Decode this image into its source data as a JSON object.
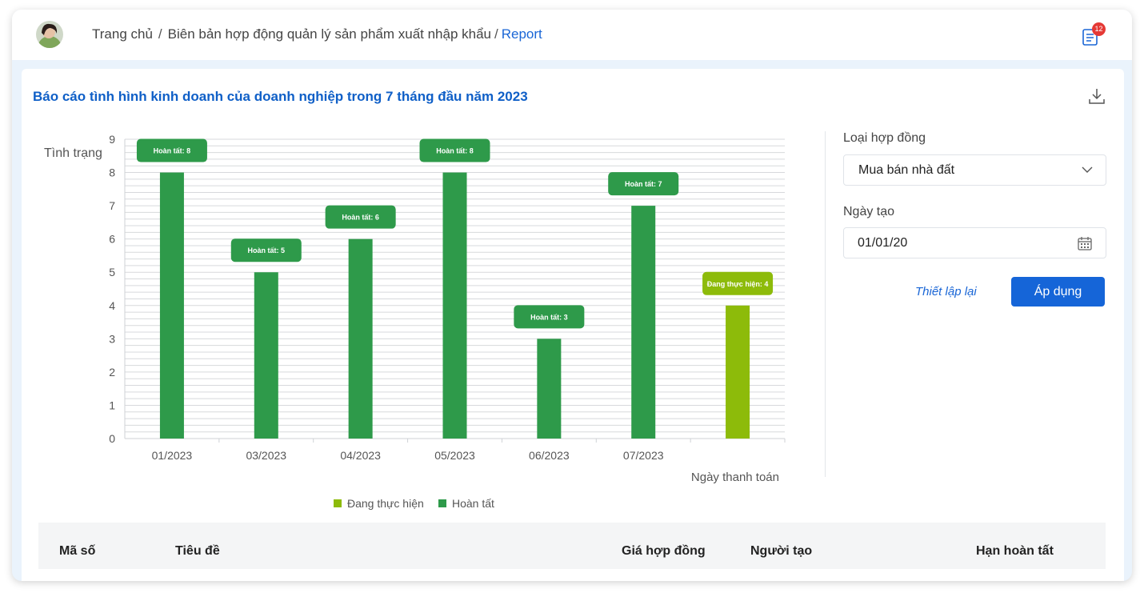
{
  "header": {
    "breadcrumb": {
      "home": "Trang chủ",
      "separator": "/",
      "parent": "Biên bản hợp động quản lý sản phẩm xuất nhập khẩu",
      "separator2": "/",
      "current": "Report"
    },
    "notification_count": "12",
    "notification_icon": "document-list-icon"
  },
  "report": {
    "title": "Báo cáo tình hình kinh doanh của doanh nghiệp trong 7 tháng đầu năm 2023",
    "download_icon": "download-icon"
  },
  "colors": {
    "done": "#2e9a4a",
    "in_progress": "#8dbb0a",
    "accent": "#1565d8"
  },
  "chart_data": {
    "type": "bar",
    "ylabel": "Tình trạng",
    "xlabel": "Ngày thanh toán",
    "ylim": [
      0,
      9
    ],
    "yticks": [
      "0",
      "1",
      "2",
      "3",
      "4",
      "5",
      "6",
      "7",
      "8",
      "9"
    ],
    "grid": true,
    "legend_position": "bottom",
    "legend": [
      {
        "name": "Đang thực hiện",
        "color": "#8dbb0a"
      },
      {
        "name": "Hoàn tất",
        "color": "#2e9a4a"
      }
    ],
    "categories": [
      "01/2023",
      "03/2023",
      "04/2023",
      "05/2023",
      "06/2023",
      "07/2023",
      ""
    ],
    "bars": [
      {
        "category": "01/2023",
        "status": "Hoàn tất",
        "value": 8,
        "label": "Hoàn tất: 8"
      },
      {
        "category": "03/2023",
        "status": "Hoàn tất",
        "value": 5,
        "label": "Hoàn tất: 5"
      },
      {
        "category": "04/2023",
        "status": "Hoàn tất",
        "value": 6,
        "label": "Hoàn tất: 6"
      },
      {
        "category": "05/2023",
        "status": "Hoàn tất",
        "value": 8,
        "label": "Hoàn tất: 8"
      },
      {
        "category": "06/2023",
        "status": "Hoàn tất",
        "value": 3,
        "label": "Hoàn tất: 3"
      },
      {
        "category": "07/2023",
        "status": "Hoàn tất",
        "value": 7,
        "label": "Hoàn tất: 7"
      },
      {
        "category": "",
        "status": "Đang thực hiện",
        "value": 4,
        "label": "Đang thực hiện: 4"
      }
    ]
  },
  "filters": {
    "contract_type_label": "Loại hợp đồng",
    "contract_type_value": "Mua bán nhà đất",
    "created_date_label": "Ngày tạo",
    "created_date_value": "01/01/20",
    "reset_label": "Thiết lập lại",
    "apply_label": "Áp dụng"
  },
  "table": {
    "columns": [
      "Mã số",
      "Tiêu đề",
      "Giá hợp đồng",
      "Người tạo",
      "Hạn hoàn tất"
    ]
  }
}
